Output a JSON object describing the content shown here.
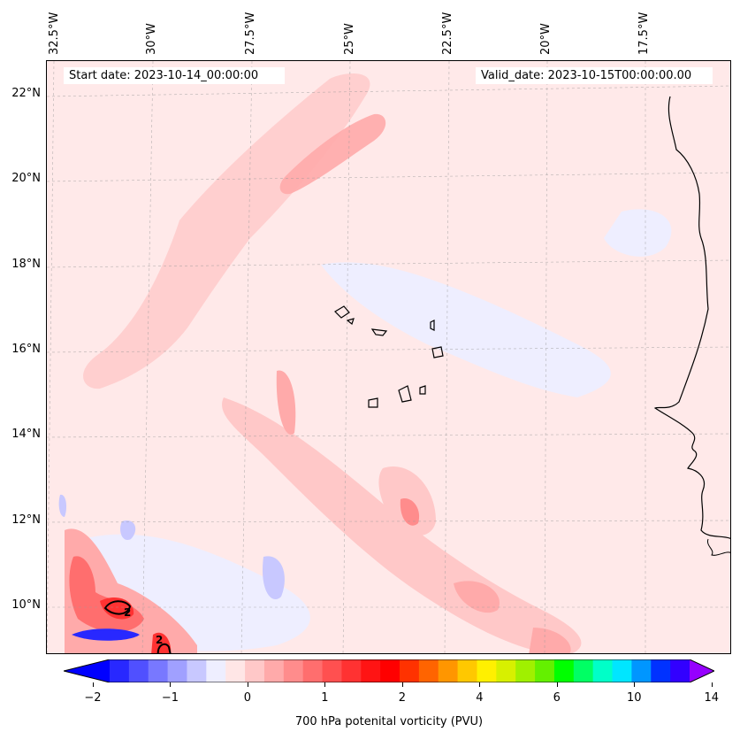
{
  "map": {
    "start_label": "Start date: 2023-10-14_00:00:00",
    "valid_label": "Valid_date: 2023-10-15T00:00:00.00",
    "lon_labels": [
      "32.5°W",
      "30°W",
      "27.5°W",
      "25°W",
      "22.5°W",
      "20°W",
      "17.5°W"
    ],
    "lat_labels": [
      "22°N",
      "20°N",
      "18°N",
      "16°N",
      "14°N",
      "12°N",
      "10°N"
    ],
    "contour_labels": [
      "2",
      "2"
    ]
  },
  "colorbar": {
    "label": "700 hPa potenital vorticity (PVU)",
    "tick_labels": [
      "−2",
      "−1",
      "0",
      "1",
      "2",
      "4",
      "6",
      "10",
      "14"
    ],
    "colors": [
      "#0000ff",
      "#2828ff",
      "#5050ff",
      "#7878ff",
      "#a0a0ff",
      "#c8c8ff",
      "#eeeeff",
      "#ffe6e6",
      "#ffc8c8",
      "#ffaaaa",
      "#ff8c8c",
      "#ff6e6e",
      "#ff5050",
      "#ff3232",
      "#ff1414",
      "#ff0000",
      "#ff3200",
      "#ff6400",
      "#ff9600",
      "#ffc800",
      "#fff000",
      "#d7f000",
      "#a0f000",
      "#64f000",
      "#00ff00",
      "#00ff64",
      "#00ffc8",
      "#00e6ff",
      "#0096ff",
      "#0032ff",
      "#3200ff",
      "#9600ff"
    ]
  }
}
